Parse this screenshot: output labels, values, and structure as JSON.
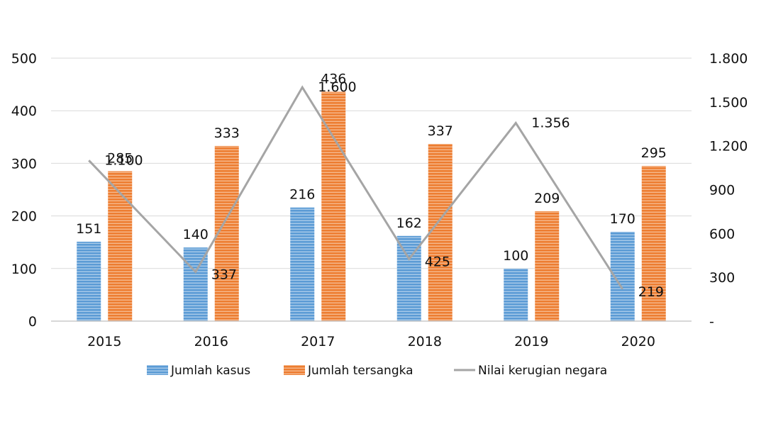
{
  "chart_data": {
    "type": "bar",
    "categories": [
      "2015",
      "2016",
      "2017",
      "2018",
      "2019",
      "2020"
    ],
    "series": [
      {
        "name": "Jumlah kasus",
        "kind": "bar",
        "axis": "left",
        "color": "#5b9bd5",
        "values": [
          151,
          140,
          216,
          162,
          100,
          170
        ],
        "labels": [
          "151",
          "140",
          "216",
          "162",
          "100",
          "170"
        ]
      },
      {
        "name": "Jumlah tersangka",
        "kind": "bar",
        "axis": "left",
        "color": "#ed7d31",
        "values": [
          285,
          333,
          436,
          337,
          209,
          295
        ],
        "labels": [
          "285",
          "333",
          "436",
          "337",
          "209",
          "295"
        ]
      },
      {
        "name": "Nilai kerugian negara",
        "kind": "line",
        "axis": "right",
        "color": "#a5a5a5",
        "values": [
          1100,
          337,
          1600,
          425,
          1356,
          219
        ],
        "labels": [
          "1.100",
          "337",
          "1.600",
          "425",
          "1.356",
          "219"
        ]
      }
    ],
    "y_left": {
      "min": 0,
      "max": 500,
      "ticks": [
        "0",
        "100",
        "200",
        "300",
        "400",
        "500"
      ]
    },
    "y_right": {
      "min": 0,
      "max": 1800,
      "ticks": [
        "-",
        "300",
        "600",
        "900",
        "1.200",
        "1.500",
        "1.800"
      ]
    },
    "grid": true,
    "legend_position": "bottom"
  }
}
